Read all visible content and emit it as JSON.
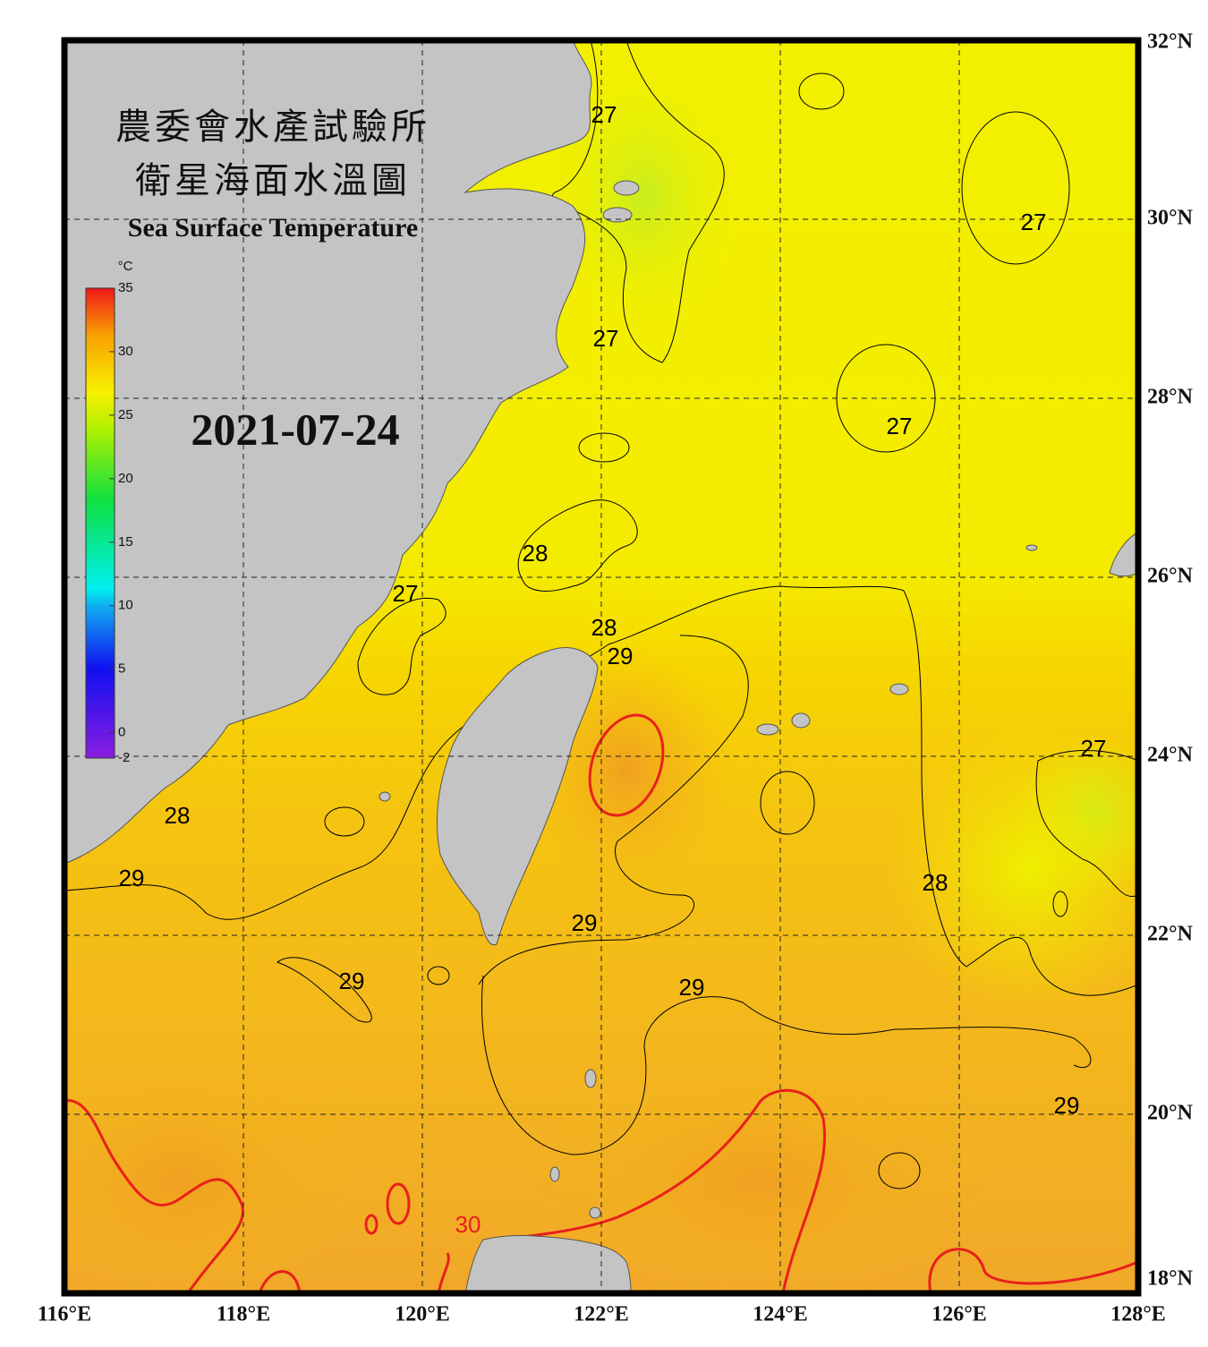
{
  "header": {
    "title_zh1": "農委會水產試驗所",
    "title_zh2": "衛星海面水溫圖",
    "title_en": "Sea Surface Temperature",
    "date": "2021-07-24"
  },
  "map": {
    "xlim": [
      116,
      128
    ],
    "ylim": [
      18,
      32
    ],
    "xticks": [
      {
        "value": 116,
        "label": "116°E"
      },
      {
        "value": 118,
        "label": "118°E"
      },
      {
        "value": 120,
        "label": "120°E"
      },
      {
        "value": 122,
        "label": "122°E"
      },
      {
        "value": 124,
        "label": "124°E"
      },
      {
        "value": 126,
        "label": "126°E"
      },
      {
        "value": 128,
        "label": "128°E"
      }
    ],
    "yticks": [
      {
        "value": 18,
        "label": "18°N"
      },
      {
        "value": 20,
        "label": "20°N"
      },
      {
        "value": 22,
        "label": "22°N"
      },
      {
        "value": 24,
        "label": "24°N"
      },
      {
        "value": 26,
        "label": "26°N"
      },
      {
        "value": 28,
        "label": "28°N"
      },
      {
        "value": 30,
        "label": "30°N"
      },
      {
        "value": 32,
        "label": "32°N"
      }
    ],
    "grid": true,
    "colorbar": {
      "unit": "°C",
      "lim": [
        -2,
        35
      ],
      "ticks": [
        35,
        30,
        25,
        20,
        15,
        10,
        5,
        0,
        -2
      ]
    },
    "contour_labels": [
      {
        "value": 27,
        "lon": 122.03,
        "lat": 31.15,
        "color": "#000"
      },
      {
        "value": 27,
        "lon": 122.05,
        "lat": 28.65,
        "color": "#000"
      },
      {
        "value": 27,
        "lon": 126.83,
        "lat": 29.95,
        "color": "#000"
      },
      {
        "value": 27,
        "lon": 125.33,
        "lat": 27.67,
        "color": "#000"
      },
      {
        "value": 28,
        "lon": 121.26,
        "lat": 26.25,
        "color": "#000"
      },
      {
        "value": 27,
        "lon": 119.81,
        "lat": 25.8,
        "color": "#000"
      },
      {
        "value": 28,
        "lon": 122.03,
        "lat": 25.42,
        "color": "#000"
      },
      {
        "value": 29,
        "lon": 122.21,
        "lat": 25.1,
        "color": "#000"
      },
      {
        "value": 27,
        "lon": 127.5,
        "lat": 24.07,
        "color": "#000"
      },
      {
        "value": 28,
        "lon": 117.26,
        "lat": 23.32,
        "color": "#000"
      },
      {
        "value": 29,
        "lon": 116.75,
        "lat": 22.62,
        "color": "#000"
      },
      {
        "value": 28,
        "lon": 125.73,
        "lat": 22.57,
        "color": "#000"
      },
      {
        "value": 29,
        "lon": 121.81,
        "lat": 22.12,
        "color": "#000"
      },
      {
        "value": 29,
        "lon": 119.21,
        "lat": 21.47,
        "color": "#000"
      },
      {
        "value": 29,
        "lon": 123.01,
        "lat": 21.4,
        "color": "#000"
      },
      {
        "value": 29,
        "lon": 127.2,
        "lat": 20.08,
        "color": "#000"
      },
      {
        "value": 30,
        "lon": 120.51,
        "lat": 18.75,
        "color": "#e8201c"
      }
    ]
  }
}
